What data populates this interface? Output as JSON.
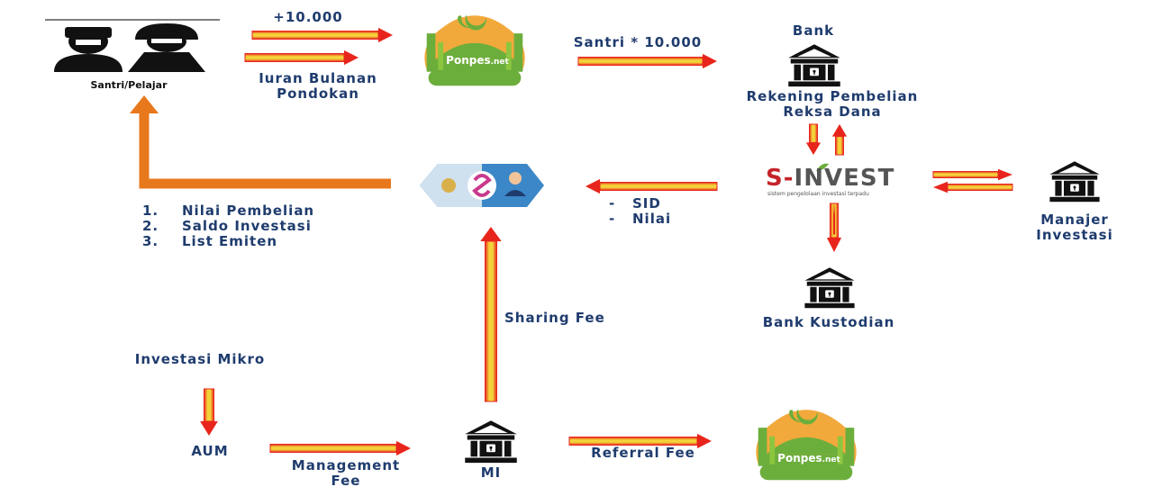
{
  "nodes": {
    "santri": {
      "label": "Santri/Pelajar"
    },
    "ponpes_top": {
      "logo_text": "Ponpes",
      "logo_suffix": ".net"
    },
    "ponpes_bottom": {
      "logo_text": "Ponpes",
      "logo_suffix": ".net"
    },
    "bank": {
      "title": "Bank",
      "caption_line1": "Rekening Pembelian",
      "caption_line2": "Reksa Dana"
    },
    "sinvest": {
      "logo_s": "S-",
      "logo_rest": "INVEST",
      "tagline": "sistem pengelolaan investasi terpadu"
    },
    "manajer": {
      "line1": "Manajer",
      "line2": "Investasi"
    },
    "kustodian": {
      "label": "Bank Kustodian"
    },
    "mi": {
      "label": "MI"
    },
    "aum": {
      "label": "AUM"
    },
    "investasi_mikro": {
      "label": "Investasi Mikro"
    }
  },
  "flows": {
    "top_amount": "+10.000",
    "iuran_line1": "Iuran Bulanan",
    "iuran_line2": "Pondokan",
    "santri_amount": "Santri * 10.000",
    "sharing_fee": "Sharing Fee",
    "referral_fee": "Referral Fee",
    "management_line1": "Management",
    "management_line2": "Fee",
    "sid_items": [
      "SID",
      "Nilai"
    ],
    "report_items": [
      {
        "num": "1.",
        "text": "Nilai Pembelian"
      },
      {
        "num": "2.",
        "text": "Saldo Investasi"
      },
      {
        "num": "3.",
        "text": "List Emiten"
      }
    ]
  },
  "colors": {
    "arrow_red": "#e8251c",
    "arrow_yellow": "#f3d23a",
    "feedback_orange": "#e8781c",
    "label_blue": "#1f3c6e",
    "icon_black": "#111111",
    "mosque_green": "#6cae3c",
    "mosque_orange": "#f2a93b",
    "app_blue": "#3b87c8"
  }
}
